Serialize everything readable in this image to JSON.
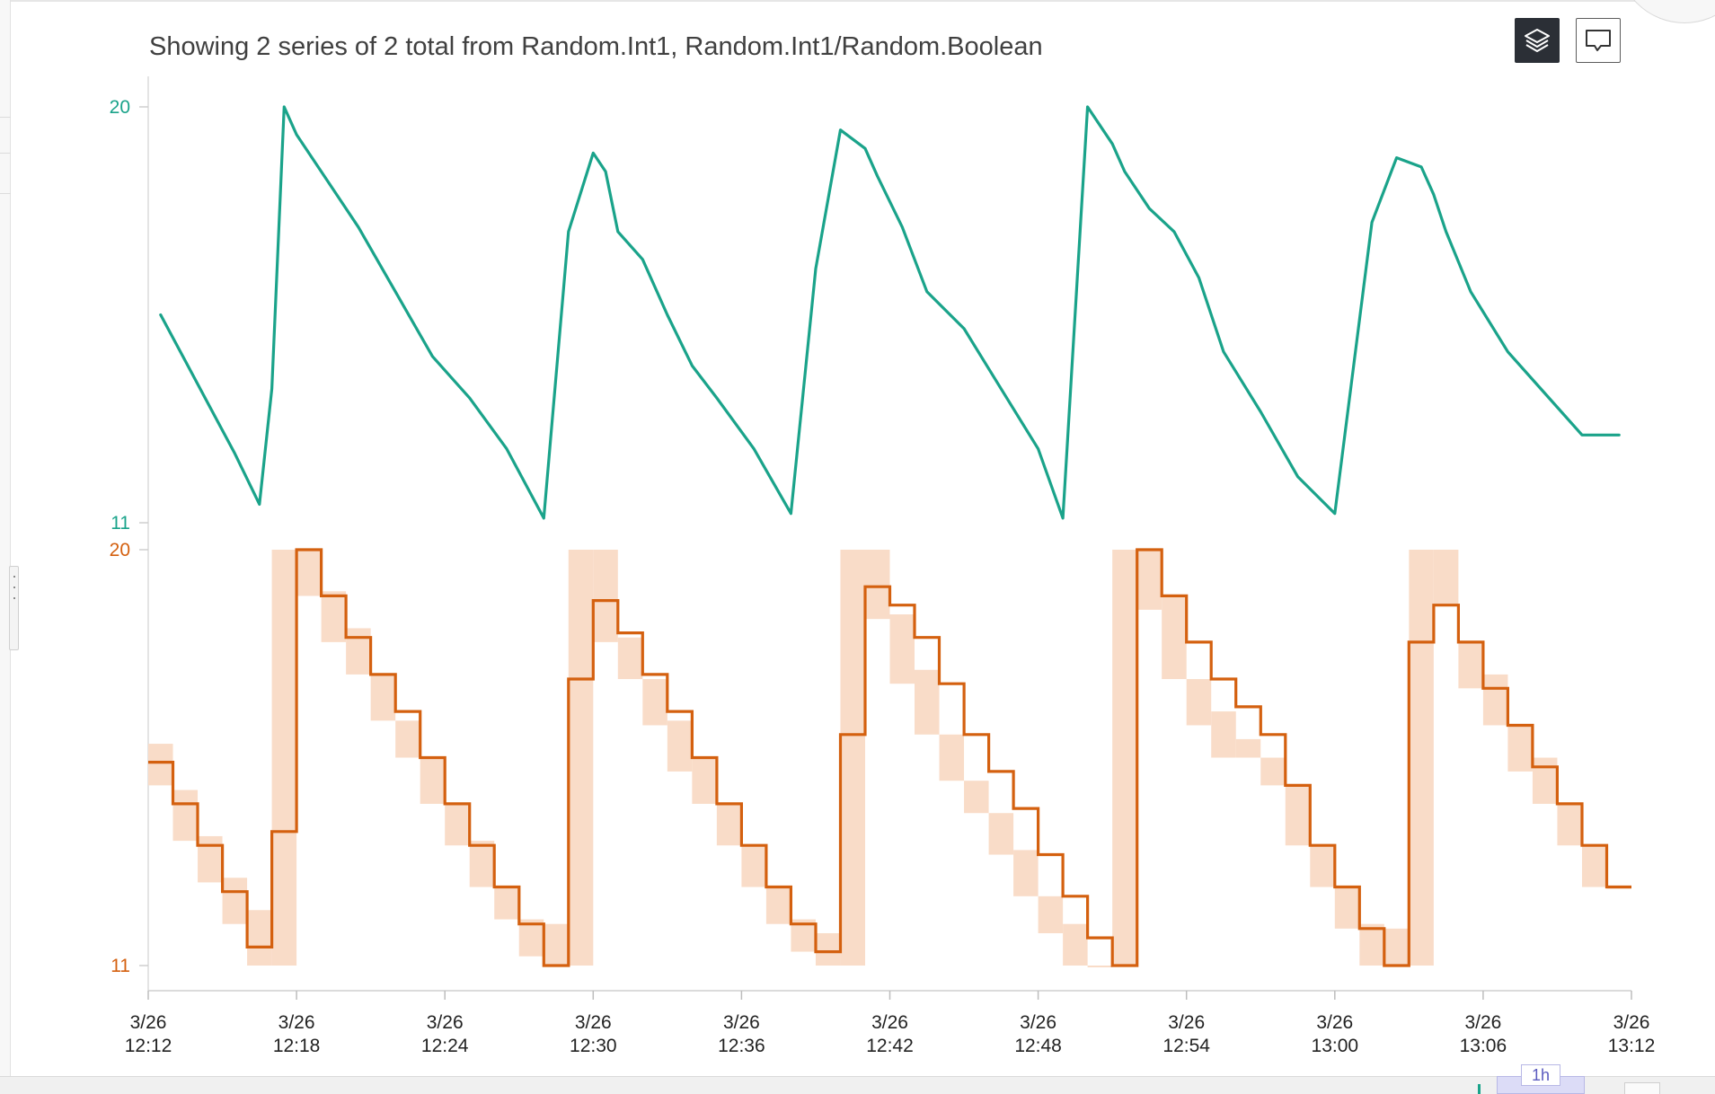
{
  "header": {
    "title": "Showing 2 series of 2 total from Random.Int1, Random.Int1/Random.Boolean"
  },
  "toolbar": {
    "layers_icon": "layers-icon",
    "comment_icon": "comment-icon"
  },
  "timeline": {
    "brush_label": "1h"
  },
  "colors": {
    "teal": "#1aa38a",
    "orange": "#d4600f",
    "band": "#f9dcc8"
  },
  "chart_data": [
    {
      "type": "line",
      "title": "",
      "xlabel": "",
      "ylabel": "",
      "ylim": [
        11,
        20
      ],
      "y_ticks": [
        "20",
        "11"
      ],
      "series": [
        {
          "x": [
            "12:12:30",
            "12:13:30",
            "12:14:30",
            "12:15:30",
            "12:16:30",
            "12:17:00",
            "12:17:30",
            "12:18:00",
            "12:19:00",
            "12:20:30",
            "12:22:00",
            "12:23:30",
            "12:25:00",
            "12:26:30",
            "12:28:00",
            "12:29:00",
            "12:30:00",
            "12:30:30",
            "12:31:00",
            "12:32:00",
            "12:33:00",
            "12:34:00",
            "12:35:00",
            "12:36:30",
            "12:38:00",
            "12:39:00",
            "12:40:00",
            "12:41:00",
            "12:41:30",
            "12:42:30",
            "12:43:30",
            "12:45:00",
            "12:46:30",
            "12:48:00",
            "12:49:00",
            "12:50:00",
            "12:51:00",
            "12:51:30",
            "12:52:30",
            "12:53:30",
            "12:54:30",
            "12:55:30",
            "12:57:00",
            "12:58:30",
            "13:00:00",
            "13:01:30",
            "13:02:30",
            "13:03:30",
            "13:04:00",
            "13:04:30",
            "13:05:30",
            "13:07:00",
            "13:08:30",
            "13:10:00",
            "13:11:30"
          ],
          "y": [
            15.5,
            14.5,
            13.5,
            12.5,
            11.4,
            13.9,
            20.0,
            19.4,
            18.6,
            17.4,
            16.0,
            14.6,
            13.7,
            12.6,
            11.1,
            17.3,
            19.0,
            18.6,
            17.3,
            16.7,
            15.5,
            14.4,
            13.7,
            12.6,
            11.2,
            16.5,
            19.5,
            19.1,
            18.5,
            17.4,
            16.0,
            15.2,
            13.9,
            12.6,
            11.1,
            20.0,
            19.2,
            18.6,
            17.8,
            17.3,
            16.3,
            14.7,
            13.4,
            12.0,
            11.2,
            17.5,
            18.9,
            18.7,
            18.1,
            17.3,
            16.0,
            14.7,
            13.8,
            12.9,
            12.9
          ]
        }
      ]
    },
    {
      "type": "line",
      "title": "",
      "xlabel": "",
      "ylabel": "",
      "ylim": [
        11,
        20
      ],
      "y_ticks": [
        "20",
        "11"
      ],
      "x_ticks": [
        {
          "date": "3/26",
          "time": "12:12"
        },
        {
          "date": "3/26",
          "time": "12:18"
        },
        {
          "date": "3/26",
          "time": "12:24"
        },
        {
          "date": "3/26",
          "time": "12:30"
        },
        {
          "date": "3/26",
          "time": "12:36"
        },
        {
          "date": "3/26",
          "time": "12:42"
        },
        {
          "date": "3/26",
          "time": "12:48"
        },
        {
          "date": "3/26",
          "time": "12:54"
        },
        {
          "date": "3/26",
          "time": "13:00"
        },
        {
          "date": "3/26",
          "time": "13:06"
        },
        {
          "date": "3/26",
          "time": "13:12"
        }
      ],
      "series": [
        {
          "x": [
            "12:12:30",
            "12:13:30",
            "12:14:30",
            "12:15:30",
            "12:16:30",
            "12:17:30",
            "12:18:30",
            "12:19:30",
            "12:20:30",
            "12:21:30",
            "12:22:30",
            "12:23:30",
            "12:24:30",
            "12:25:30",
            "12:26:30",
            "12:27:30",
            "12:28:30",
            "12:29:30",
            "12:30:30",
            "12:31:30",
            "12:32:30",
            "12:33:30",
            "12:34:30",
            "12:35:30",
            "12:36:30",
            "12:37:30",
            "12:38:30",
            "12:39:30",
            "12:40:30",
            "12:41:30",
            "12:42:30",
            "12:43:30",
            "12:44:30",
            "12:45:30",
            "12:46:30",
            "12:47:30",
            "12:48:30",
            "12:49:30",
            "12:50:30",
            "12:51:30",
            "12:52:30",
            "12:53:30",
            "12:54:30",
            "12:55:30",
            "12:56:30",
            "12:57:30",
            "12:58:30",
            "12:59:30",
            "13:00:30",
            "13:01:30",
            "13:02:30",
            "13:03:30",
            "13:04:30",
            "13:05:30",
            "13:06:30",
            "13:07:30",
            "13:08:30",
            "13:09:30",
            "13:10:30",
            "13:11:30"
          ],
          "y": [
            15.4,
            14.5,
            13.6,
            12.6,
            11.4,
            13.9,
            20.0,
            19.0,
            18.1,
            17.3,
            16.5,
            15.5,
            14.5,
            13.6,
            12.7,
            11.9,
            11.0,
            17.2,
            18.9,
            18.2,
            17.3,
            16.5,
            15.5,
            14.5,
            13.6,
            12.7,
            11.9,
            11.3,
            16.0,
            19.2,
            18.8,
            18.1,
            17.1,
            16.0,
            15.2,
            14.4,
            13.4,
            12.5,
            11.6,
            11.0,
            20.0,
            19.0,
            18.0,
            17.2,
            16.6,
            16.0,
            14.9,
            13.6,
            12.7,
            11.8,
            11.0,
            18.0,
            18.8,
            18.0,
            17.0,
            16.2,
            15.3,
            14.5,
            13.6,
            12.7
          ]
        }
      ],
      "band": [
        [
          14.9,
          15.8
        ],
        [
          13.7,
          14.8
        ],
        [
          12.8,
          13.8
        ],
        [
          11.9,
          12.9
        ],
        [
          11.0,
          12.2
        ],
        [
          11.0,
          20.0
        ],
        [
          19.0,
          20.0
        ],
        [
          18.0,
          19.1
        ],
        [
          17.3,
          18.3
        ],
        [
          16.3,
          17.3
        ],
        [
          15.5,
          16.3
        ],
        [
          14.5,
          15.5
        ],
        [
          13.6,
          14.5
        ],
        [
          12.7,
          13.7
        ],
        [
          12.0,
          12.7
        ],
        [
          11.2,
          12.0
        ],
        [
          11.0,
          11.9
        ],
        [
          11.0,
          20.0
        ],
        [
          18.0,
          20.0
        ],
        [
          17.2,
          18.1
        ],
        [
          16.2,
          17.2
        ],
        [
          15.2,
          16.3
        ],
        [
          14.5,
          15.5
        ],
        [
          13.6,
          14.5
        ],
        [
          12.7,
          13.6
        ],
        [
          11.9,
          12.7
        ],
        [
          11.3,
          12.0
        ],
        [
          11.0,
          11.7
        ],
        [
          11.0,
          20.0
        ],
        [
          18.5,
          20.0
        ],
        [
          17.1,
          18.6
        ],
        [
          16.0,
          17.4
        ],
        [
          15.0,
          16.0
        ],
        [
          14.3,
          15.0
        ],
        [
          13.4,
          14.3
        ],
        [
          12.5,
          13.5
        ],
        [
          11.7,
          12.5
        ],
        [
          11.0,
          11.9
        ],
        [
          11.0,
          11.0
        ],
        [
          11.0,
          20.0
        ],
        [
          18.7,
          20.0
        ],
        [
          17.2,
          19.0
        ],
        [
          16.2,
          17.2
        ],
        [
          15.5,
          16.5
        ],
        [
          15.5,
          15.9
        ],
        [
          14.9,
          15.5
        ],
        [
          13.6,
          14.9
        ],
        [
          12.7,
          13.6
        ],
        [
          11.8,
          12.7
        ],
        [
          11.0,
          11.9
        ],
        [
          11.0,
          11.8
        ],
        [
          11.0,
          20.0
        ],
        [
          18.8,
          20.0
        ],
        [
          17.0,
          18.0
        ],
        [
          16.2,
          17.3
        ],
        [
          15.2,
          16.2
        ],
        [
          14.5,
          15.5
        ],
        [
          13.6,
          14.5
        ],
        [
          12.7,
          13.6
        ],
        [
          12.7,
          12.7
        ]
      ]
    }
  ]
}
